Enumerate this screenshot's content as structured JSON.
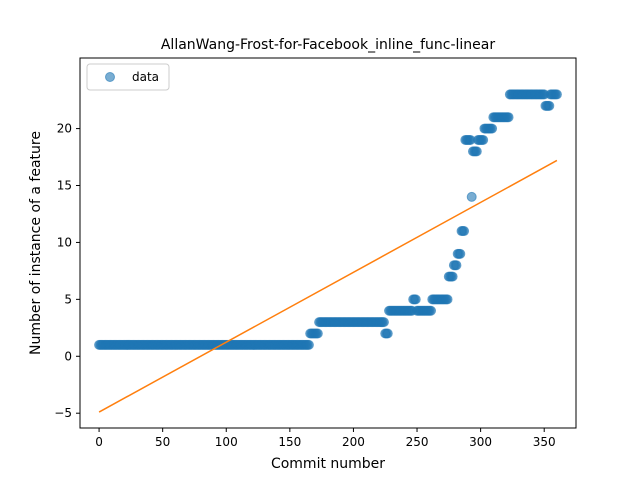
{
  "chart_data": {
    "type": "scatter",
    "title": "AllanWang-Frost-for-Facebook_inline_func-linear",
    "xlabel": "Commit number",
    "ylabel": "Number of instance of a feature",
    "xlim": [
      -15,
      375
    ],
    "ylim": [
      -6.3,
      26.2
    ],
    "xticks": [
      0,
      50,
      100,
      150,
      200,
      250,
      300,
      350
    ],
    "yticks": [
      -5,
      0,
      5,
      10,
      15,
      20
    ],
    "legend": {
      "placement": "top-left",
      "entries": [
        "data"
      ]
    },
    "grid": false,
    "colors": {
      "data": "#1f77b4",
      "fit": "#ff7f0e"
    },
    "series": [
      {
        "name": "data",
        "kind": "scatter",
        "segments": [
          {
            "x_start": 0,
            "x_end": 165,
            "y": 1
          },
          {
            "x_start": 166,
            "x_end": 172,
            "y": 2
          },
          {
            "x_start": 173,
            "x_end": 224,
            "y": 3
          },
          {
            "x_start": 225,
            "x_end": 227,
            "y": 2
          },
          {
            "x_start": 228,
            "x_end": 246,
            "y": 4
          },
          {
            "x_start": 247,
            "x_end": 249,
            "y": 5
          },
          {
            "x_start": 250,
            "x_end": 261,
            "y": 4
          },
          {
            "x_start": 262,
            "x_end": 274,
            "y": 5
          },
          {
            "x_start": 275,
            "x_end": 278,
            "y": 7
          },
          {
            "x_start": 279,
            "x_end": 281,
            "y": 8
          },
          {
            "x_start": 282,
            "x_end": 284,
            "y": 9
          },
          {
            "x_start": 285,
            "x_end": 287,
            "y": 11
          },
          {
            "x_start": 288,
            "x_end": 292,
            "y": 19
          },
          {
            "x_start": 293,
            "x_end": 293,
            "y": 14
          },
          {
            "x_start": 294,
            "x_end": 297,
            "y": 18
          },
          {
            "x_start": 298,
            "x_end": 302,
            "y": 19
          },
          {
            "x_start": 303,
            "x_end": 309,
            "y": 20
          },
          {
            "x_start": 310,
            "x_end": 322,
            "y": 21
          },
          {
            "x_start": 323,
            "x_end": 350,
            "y": 23
          },
          {
            "x_start": 351,
            "x_end": 354,
            "y": 22
          },
          {
            "x_start": 355,
            "x_end": 360,
            "y": 23
          }
        ]
      },
      {
        "name": "",
        "kind": "line",
        "x": [
          0,
          360
        ],
        "y": [
          -4.9,
          17.2
        ]
      }
    ]
  }
}
